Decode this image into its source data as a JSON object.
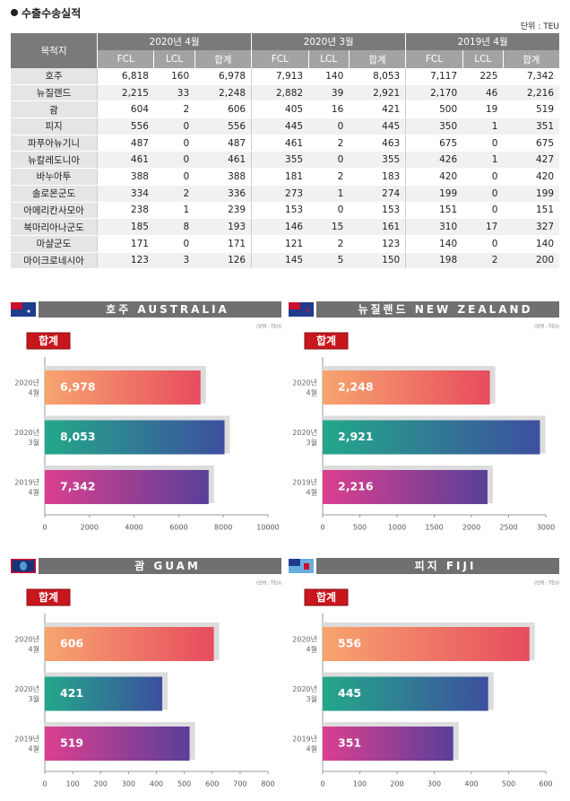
{
  "header": {
    "title": "수출수송실적",
    "unit": "단위 : TEU"
  },
  "table": {
    "columns": [
      "목적지"
    ],
    "groups": [
      "2020년 4월",
      "2020년 3월",
      "2019년 4월"
    ],
    "sub_headers": [
      "FCL",
      "LCL",
      "합계"
    ],
    "rows": [
      [
        "호주",
        "6,818",
        "160",
        "6,978",
        "7,913",
        "140",
        "8,053",
        "7,117",
        "225",
        "7,342"
      ],
      [
        "뉴질랜드",
        "2,215",
        "33",
        "2,248",
        "2,882",
        "39",
        "2,921",
        "2,170",
        "46",
        "2,216"
      ],
      [
        "괌",
        "604",
        "2",
        "606",
        "405",
        "16",
        "421",
        "500",
        "19",
        "519"
      ],
      [
        "피지",
        "556",
        "0",
        "556",
        "445",
        "0",
        "445",
        "350",
        "1",
        "351"
      ],
      [
        "파푸아뉴기니",
        "487",
        "0",
        "487",
        "461",
        "2",
        "463",
        "675",
        "0",
        "675"
      ],
      [
        "뉴칼레도니아",
        "461",
        "0",
        "461",
        "355",
        "0",
        "355",
        "426",
        "1",
        "427"
      ],
      [
        "바누아투",
        "388",
        "0",
        "388",
        "181",
        "2",
        "183",
        "420",
        "0",
        "420"
      ],
      [
        "솔로몬군도",
        "334",
        "2",
        "336",
        "273",
        "1",
        "274",
        "199",
        "0",
        "199"
      ],
      [
        "아메리칸사모아",
        "238",
        "1",
        "239",
        "153",
        "0",
        "153",
        "151",
        "0",
        "151"
      ],
      [
        "북마리아나군도",
        "185",
        "8",
        "193",
        "146",
        "15",
        "161",
        "310",
        "17",
        "327"
      ],
      [
        "마샬군도",
        "171",
        "0",
        "171",
        "121",
        "2",
        "123",
        "140",
        "0",
        "140"
      ],
      [
        "마이크로네시아",
        "123",
        "3",
        "126",
        "145",
        "5",
        "150",
        "198",
        "2",
        "200"
      ]
    ]
  },
  "chart_data": [
    {
      "type": "bar",
      "orientation": "horizontal",
      "title": "호주 AUSTRALIA",
      "unit": "(단위 : TEU)",
      "badge": "합계",
      "categories": [
        [
          "2020년",
          "4월"
        ],
        [
          "2020년",
          "3월"
        ],
        [
          "2019년",
          "4월"
        ]
      ],
      "values": [
        6978,
        8053,
        7342
      ],
      "value_labels": [
        "6,978",
        "8,053",
        "7,342"
      ],
      "colors": [
        [
          "#f7a56f",
          "#e74c5e"
        ],
        [
          "#23a889",
          "#3d4f9f"
        ],
        [
          "#dc3f8f",
          "#5a3f99"
        ]
      ],
      "xlim": [
        0,
        10000
      ],
      "xticks": [
        0,
        2000,
        4000,
        6000,
        8000,
        10000
      ]
    },
    {
      "type": "bar",
      "orientation": "horizontal",
      "title": "뉴질랜드 NEW ZEALAND",
      "unit": "(단위 : TEU)",
      "badge": "합계",
      "categories": [
        [
          "2020년",
          "4월"
        ],
        [
          "2020년",
          "3월"
        ],
        [
          "2019년",
          "4월"
        ]
      ],
      "values": [
        2248,
        2921,
        2216
      ],
      "value_labels": [
        "2,248",
        "2,921",
        "2,216"
      ],
      "colors": [
        [
          "#f7a56f",
          "#e74c5e"
        ],
        [
          "#23a889",
          "#3d4f9f"
        ],
        [
          "#dc3f8f",
          "#5a3f99"
        ]
      ],
      "xlim": [
        0,
        3000
      ],
      "xticks": [
        0,
        500,
        1000,
        1500,
        2000,
        2500,
        3000
      ]
    },
    {
      "type": "bar",
      "orientation": "horizontal",
      "title": "괌 GUAM",
      "unit": "(단위 : TEU)",
      "badge": "합계",
      "categories": [
        [
          "2020년",
          "4월"
        ],
        [
          "2020년",
          "3월"
        ],
        [
          "2019년",
          "4월"
        ]
      ],
      "values": [
        606,
        421,
        519
      ],
      "value_labels": [
        "606",
        "421",
        "519"
      ],
      "colors": [
        [
          "#f7a56f",
          "#e74c5e"
        ],
        [
          "#23a889",
          "#3d4f9f"
        ],
        [
          "#dc3f8f",
          "#5a3f99"
        ]
      ],
      "xlim": [
        0,
        800
      ],
      "xticks": [
        0,
        100,
        200,
        300,
        400,
        500,
        600,
        700,
        800
      ]
    },
    {
      "type": "bar",
      "orientation": "horizontal",
      "title": "피지 FIJI",
      "unit": "(단위 : TEU)",
      "badge": "합계",
      "categories": [
        [
          "2020년",
          "4월"
        ],
        [
          "2020년",
          "3월"
        ],
        [
          "2019년",
          "4월"
        ]
      ],
      "values": [
        556,
        445,
        351
      ],
      "value_labels": [
        "556",
        "445",
        "351"
      ],
      "colors": [
        [
          "#f7a56f",
          "#e74c5e"
        ],
        [
          "#23a889",
          "#3d4f9f"
        ],
        [
          "#dc3f8f",
          "#5a3f99"
        ]
      ],
      "xlim": [
        0,
        600
      ],
      "xticks": [
        0,
        100,
        200,
        300,
        400,
        500,
        600
      ]
    }
  ]
}
